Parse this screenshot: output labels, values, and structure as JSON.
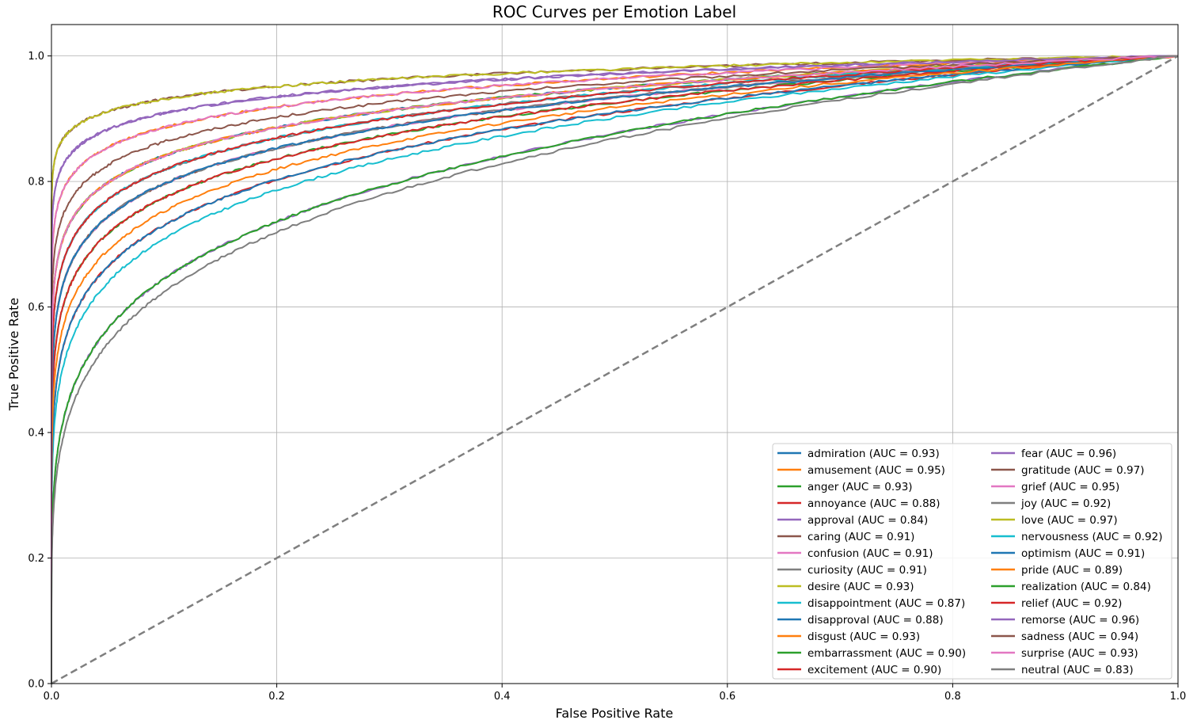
{
  "chart_data": {
    "type": "line",
    "title": "ROC Curves per Emotion Label",
    "xlabel": "False Positive Rate",
    "ylabel": "True Positive Rate",
    "xlim": [
      0.0,
      1.0
    ],
    "ylim": [
      0.0,
      1.05
    ],
    "xticks": [
      "0.0",
      "0.2",
      "0.4",
      "0.6",
      "0.8",
      "1.0"
    ],
    "yticks": [
      "0.0",
      "0.2",
      "0.4",
      "0.6",
      "0.8",
      "1.0"
    ],
    "grid": true,
    "legend_position": "lower-right",
    "legend_columns": 2,
    "diagonal": {
      "x": [
        0,
        1
      ],
      "y": [
        0,
        1
      ],
      "color": "#7f7f7f",
      "style": "dashed"
    },
    "series": [
      {
        "name": "admiration (AUC = 0.93)",
        "auc": 0.93,
        "color": "#1f77b4"
      },
      {
        "name": "amusement (AUC = 0.95)",
        "auc": 0.95,
        "color": "#ff7f0e"
      },
      {
        "name": "anger (AUC = 0.93)",
        "auc": 0.93,
        "color": "#2ca02c"
      },
      {
        "name": "annoyance (AUC = 0.88)",
        "auc": 0.88,
        "color": "#d62728"
      },
      {
        "name": "approval (AUC = 0.84)",
        "auc": 0.84,
        "color": "#9467bd"
      },
      {
        "name": "caring (AUC = 0.91)",
        "auc": 0.91,
        "color": "#8c564b"
      },
      {
        "name": "confusion (AUC = 0.91)",
        "auc": 0.91,
        "color": "#e377c2"
      },
      {
        "name": "curiosity (AUC = 0.91)",
        "auc": 0.91,
        "color": "#7f7f7f"
      },
      {
        "name": "desire (AUC = 0.93)",
        "auc": 0.93,
        "color": "#bcbd22"
      },
      {
        "name": "disappointment (AUC = 0.87)",
        "auc": 0.87,
        "color": "#17becf"
      },
      {
        "name": "disapproval (AUC = 0.88)",
        "auc": 0.88,
        "color": "#1f77b4"
      },
      {
        "name": "disgust (AUC = 0.93)",
        "auc": 0.93,
        "color": "#ff7f0e"
      },
      {
        "name": "embarrassment (AUC = 0.90)",
        "auc": 0.9,
        "color": "#2ca02c"
      },
      {
        "name": "excitement (AUC = 0.90)",
        "auc": 0.9,
        "color": "#d62728"
      },
      {
        "name": "fear (AUC = 0.96)",
        "auc": 0.96,
        "color": "#9467bd"
      },
      {
        "name": "gratitude (AUC = 0.97)",
        "auc": 0.97,
        "color": "#8c564b"
      },
      {
        "name": "grief (AUC = 0.95)",
        "auc": 0.95,
        "color": "#e377c2"
      },
      {
        "name": "joy (AUC = 0.92)",
        "auc": 0.92,
        "color": "#7f7f7f"
      },
      {
        "name": "love (AUC = 0.97)",
        "auc": 0.97,
        "color": "#bcbd22"
      },
      {
        "name": "nervousness (AUC = 0.92)",
        "auc": 0.92,
        "color": "#17becf"
      },
      {
        "name": "optimism (AUC = 0.91)",
        "auc": 0.91,
        "color": "#1f77b4"
      },
      {
        "name": "pride (AUC = 0.89)",
        "auc": 0.89,
        "color": "#ff7f0e"
      },
      {
        "name": "realization (AUC = 0.84)",
        "auc": 0.84,
        "color": "#2ca02c"
      },
      {
        "name": "relief (AUC = 0.92)",
        "auc": 0.92,
        "color": "#d62728"
      },
      {
        "name": "remorse (AUC = 0.96)",
        "auc": 0.96,
        "color": "#9467bd"
      },
      {
        "name": "sadness (AUC = 0.94)",
        "auc": 0.94,
        "color": "#8c564b"
      },
      {
        "name": "surprise (AUC = 0.93)",
        "auc": 0.93,
        "color": "#e377c2"
      },
      {
        "name": "neutral (AUC = 0.83)",
        "auc": 0.83,
        "color": "#7f7f7f"
      }
    ]
  }
}
